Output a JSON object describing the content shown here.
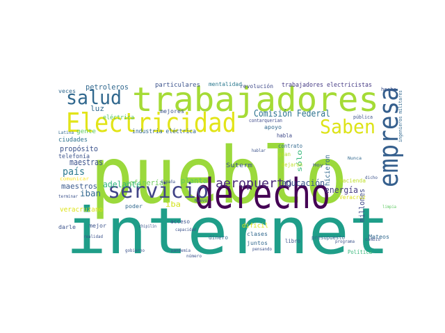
{
  "chart_data": {
    "type": "wordcloud",
    "background": "#ffffff",
    "words": [
      {
        "text": "internet",
        "color": "#1f9e89"
      },
      {
        "text": "pueblo",
        "color": "#9bd93c"
      },
      {
        "text": "trabajadores",
        "color": "#a5db36"
      },
      {
        "text": "derecho",
        "color": "#440154"
      },
      {
        "text": "Electricidad",
        "color": "#e2e418"
      },
      {
        "text": "empresa",
        "color": "#355f8d"
      },
      {
        "text": "Saben",
        "color": "#dde318"
      },
      {
        "text": "servicio",
        "color": "#414487"
      },
      {
        "text": "salud",
        "color": "#31688e"
      },
      {
        "text": "aeropuerto",
        "color": "#482878"
      },
      {
        "text": "Comisión Federal",
        "color": "#2c728e"
      },
      {
        "text": "petroleros",
        "color": "#31688e"
      },
      {
        "text": "educación",
        "color": "#39568c"
      },
      {
        "text": "energía",
        "color": "#443983"
      },
      {
        "text": "propósito",
        "color": "#3b528b"
      },
      {
        "text": "país",
        "color": "#2a788e"
      },
      {
        "text": "maestras",
        "color": "#3b528b"
      },
      {
        "text": "maestros",
        "color": "#38598c"
      },
      {
        "text": "iban",
        "color": "#31688e"
      },
      {
        "text": "adelante",
        "color": "#2fb47c"
      },
      {
        "text": "refinería",
        "color": "#6ccd5a"
      },
      {
        "text": "planta",
        "color": "#5ec962"
      },
      {
        "text": "iba",
        "color": "#d2e21b"
      },
      {
        "text": "veracruzano",
        "color": "#dde318"
      },
      {
        "text": "millones",
        "color": "#3e4989"
      },
      {
        "text": "hicieron",
        "color": "#31688e"
      },
      {
        "text": "sólo",
        "color": "#35b779"
      },
      {
        "text": "Suterm",
        "color": "#3b528b"
      },
      {
        "text": "industria eléctrica",
        "color": "#31688e"
      },
      {
        "text": "trabajadores electricistas",
        "color": "#443983"
      },
      {
        "text": "revolución",
        "color": "#3e4989"
      },
      {
        "text": "particulares",
        "color": "#3b528b"
      },
      {
        "text": "mentalidad",
        "color": "#2a788e"
      },
      {
        "text": "luz",
        "color": "#31688e"
      },
      {
        "text": "eléctrica",
        "color": "#52c569"
      },
      {
        "text": "telefonía",
        "color": "#3b528b"
      },
      {
        "text": "ciudades",
        "color": "#2c728e"
      },
      {
        "text": "gente",
        "color": "#5ec962"
      },
      {
        "text": "veces",
        "color": "#31688e"
      },
      {
        "text": "mejores",
        "color": "#3b528b"
      },
      {
        "text": "apoyo",
        "color": "#31688e"
      },
      {
        "text": "contrato",
        "color": "#31688e"
      },
      {
        "text": "gran",
        "color": "#b5de2b"
      },
      {
        "text": "dejaron",
        "color": "#bddf26"
      },
      {
        "text": "hacienda",
        "color": "#bddf26"
      },
      {
        "text": "Veracruz",
        "color": "#dde318"
      },
      {
        "text": "presupuesto",
        "color": "#31688e"
      },
      {
        "text": "clases",
        "color": "#31688e"
      },
      {
        "text": "juntos",
        "color": "#31688e"
      },
      {
        "text": "dinero",
        "color": "#31688e"
      },
      {
        "text": "libro",
        "color": "#3b528b"
      },
      {
        "text": "Mateos",
        "color": "#31688e"
      },
      {
        "text": "acceso",
        "color": "#3b528b"
      },
      {
        "text": "difícil",
        "color": "#dde318"
      },
      {
        "text": "mejor",
        "color": "#3b528b"
      },
      {
        "text": "poder",
        "color": "#31688e"
      },
      {
        "text": "darle",
        "color": "#3b528b"
      },
      {
        "text": "comunicar",
        "color": "#fde725"
      },
      {
        "text": "contarquerian",
        "color": "#3e4989"
      },
      {
        "text": "hablar",
        "color": "#3b528b"
      },
      {
        "text": "habla",
        "color": "#3e4989"
      },
      {
        "text": "Política",
        "color": "#35b779"
      },
      {
        "text": "dicho",
        "color": "#3b528b"
      },
      {
        "text": "hecho",
        "color": "#3b528b"
      },
      {
        "text": "ingenieros militares",
        "color": "#31688e"
      },
      {
        "text": "pública",
        "color": "#3b528b"
      },
      {
        "text": "Latina",
        "color": "#31688e"
      },
      {
        "text": "capacidad",
        "color": "#3b528b"
      },
      {
        "text": "Nuevo",
        "color": "#3b528b"
      },
      {
        "text": "España",
        "color": "#3b528b"
      },
      {
        "text": "Hoy",
        "color": "#3b528b"
      },
      {
        "text": "Nunca",
        "color": "#31688e"
      },
      {
        "text": "chipilín",
        "color": "#3b528b"
      },
      {
        "text": "gobierno",
        "color": "#3b528b"
      },
      {
        "text": "pandemia",
        "color": "#3b528b"
      },
      {
        "text": "pensando",
        "color": "#3b528b"
      },
      {
        "text": "cambio",
        "color": "#3b528b"
      },
      {
        "text": "limpia",
        "color": "#5ec962"
      },
      {
        "text": "programa",
        "color": "#3b528b"
      },
      {
        "text": "realidad",
        "color": "#3b528b"
      },
      {
        "text": "terminar",
        "color": "#3b528b"
      },
      {
        "text": "número",
        "color": "#3b528b"
      }
    ]
  }
}
